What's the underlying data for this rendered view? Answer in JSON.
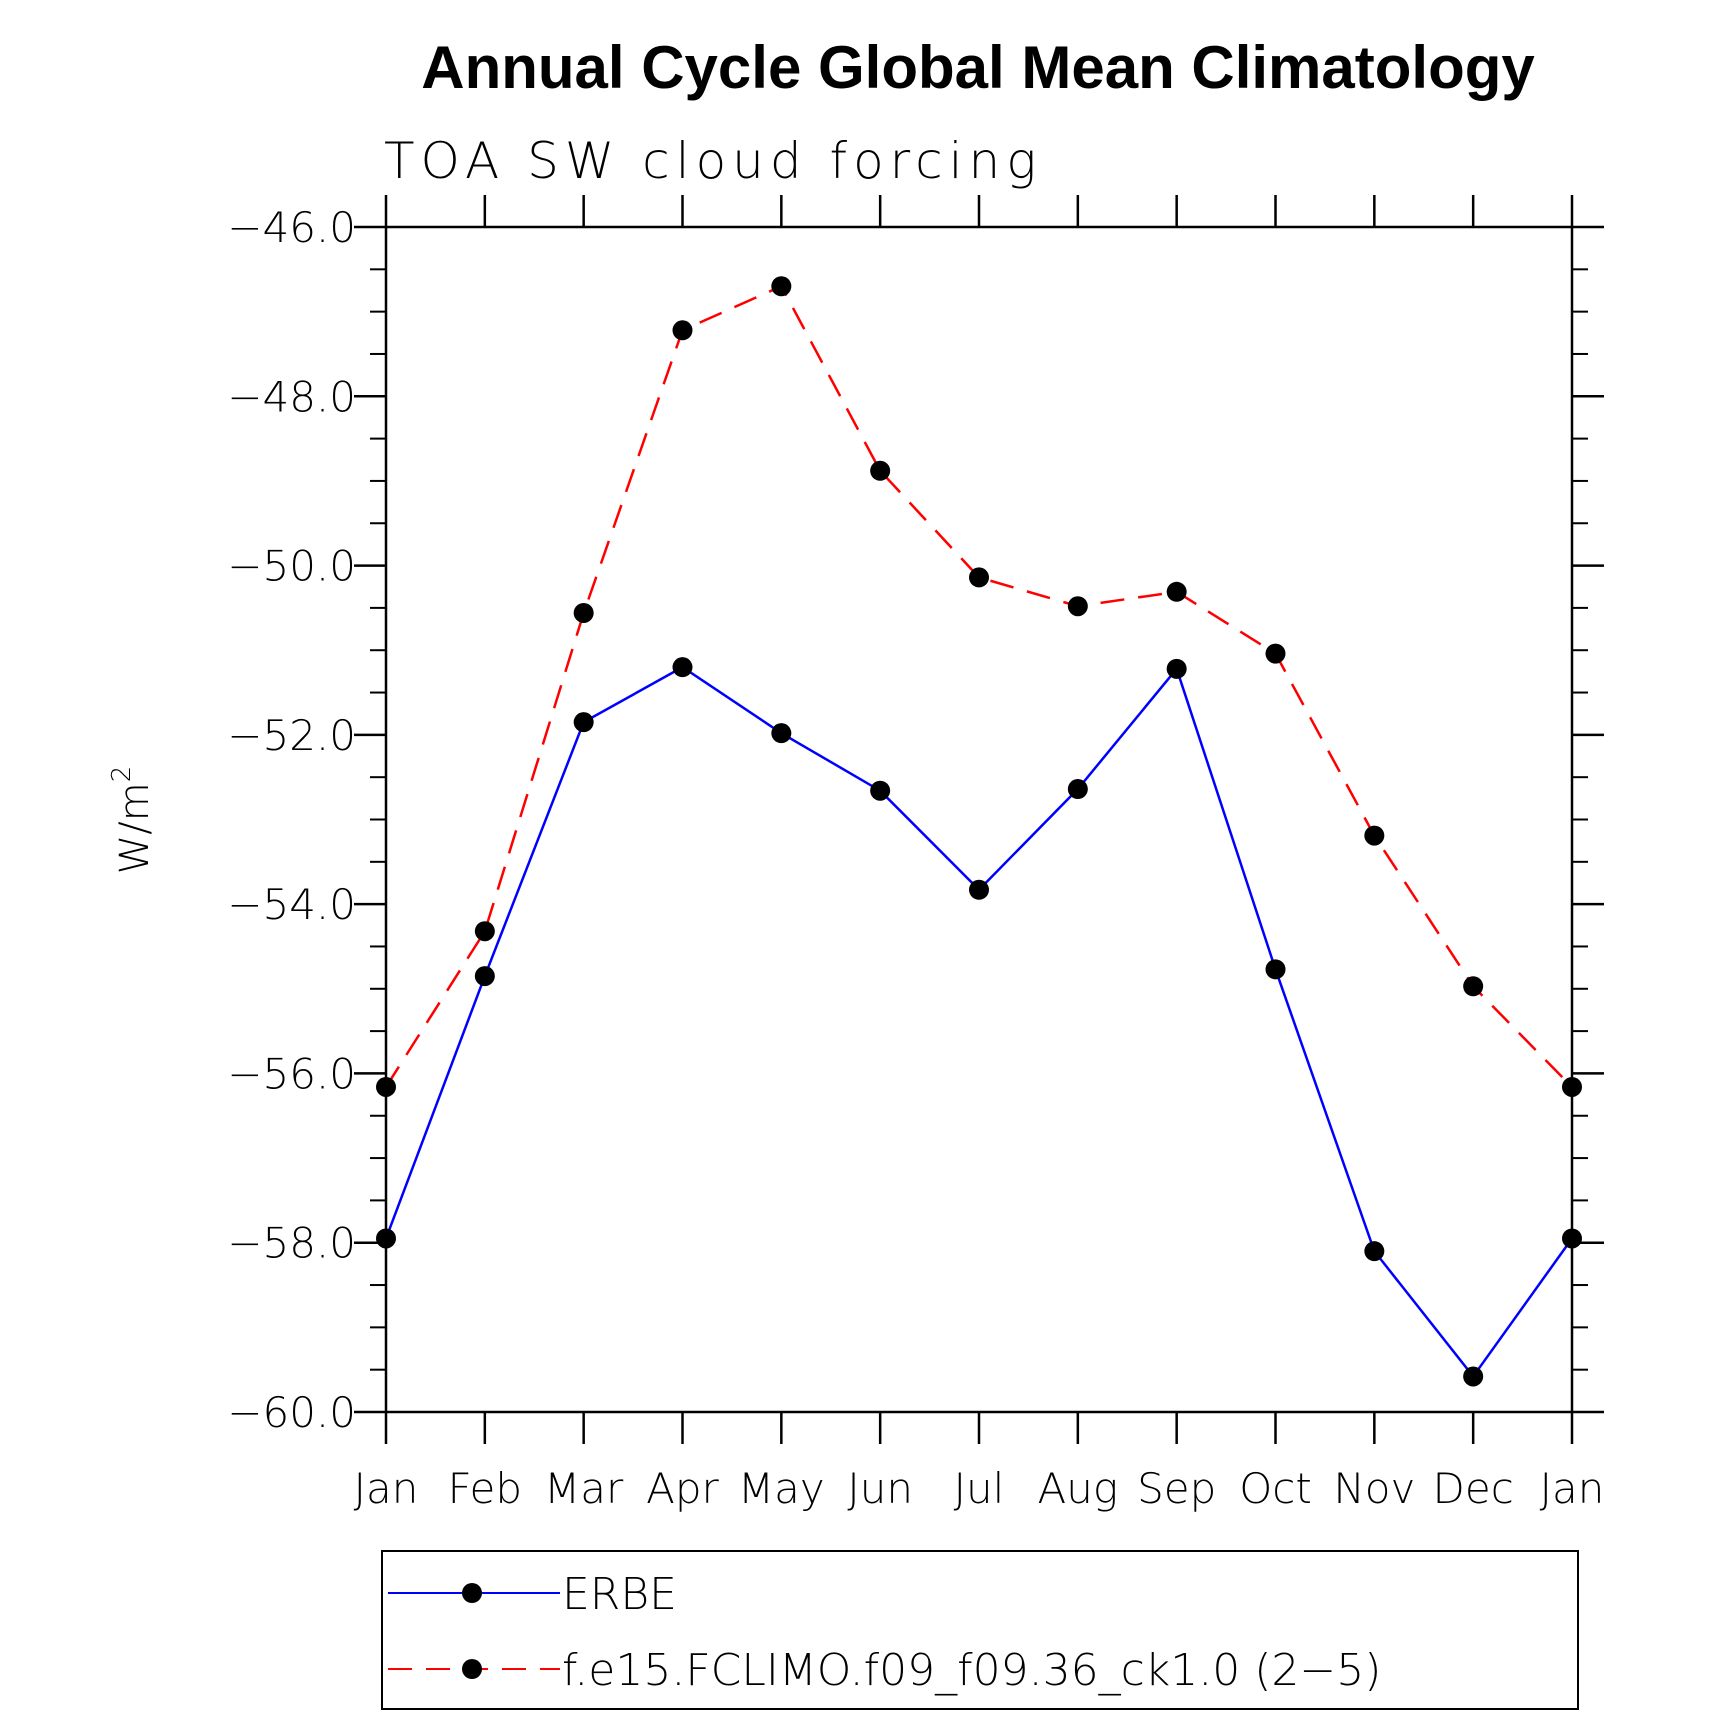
{
  "chart_data": {
    "type": "line",
    "title": "Annual Cycle Global Mean Climatology",
    "subtitle": "TOA SW cloud forcing",
    "ylabel": "W/m",
    "ylabel_sup": "2",
    "xlabel": "",
    "categories": [
      "Jan",
      "Feb",
      "Mar",
      "Apr",
      "May",
      "Jun",
      "Jul",
      "Aug",
      "Sep",
      "Oct",
      "Nov",
      "Dec",
      "Jan"
    ],
    "ylim": [
      -60,
      -46
    ],
    "yticks": [
      -46,
      -48,
      -50,
      -52,
      -54,
      -56,
      -58,
      -60
    ],
    "ytick_labels": [
      "−46.0",
      "−48.0",
      "−50.0",
      "−52.0",
      "−54.0",
      "−56.0",
      "−58.0",
      "−60.0"
    ],
    "grid": false,
    "legend_position": "bottom",
    "series": [
      {
        "name": "ERBE",
        "color": "#0000ff",
        "dash": "solid",
        "marker": "filled-circle",
        "values": [
          -57.95,
          -54.85,
          -51.85,
          -51.2,
          -51.98,
          -52.66,
          -53.83,
          -52.64,
          -51.22,
          -54.77,
          -58.1,
          -59.58,
          -57.95
        ]
      },
      {
        "name": "f.e15.FCLIMO.f09_f09.36_ck1.0 (2−5)",
        "color": "#ff0000",
        "dash": "dashed",
        "marker": "filled-circle",
        "values": [
          -56.16,
          -54.32,
          -50.56,
          -47.22,
          -46.7,
          -48.88,
          -50.14,
          -50.48,
          -50.31,
          -51.04,
          -53.19,
          -54.97,
          -56.16
        ]
      }
    ]
  }
}
